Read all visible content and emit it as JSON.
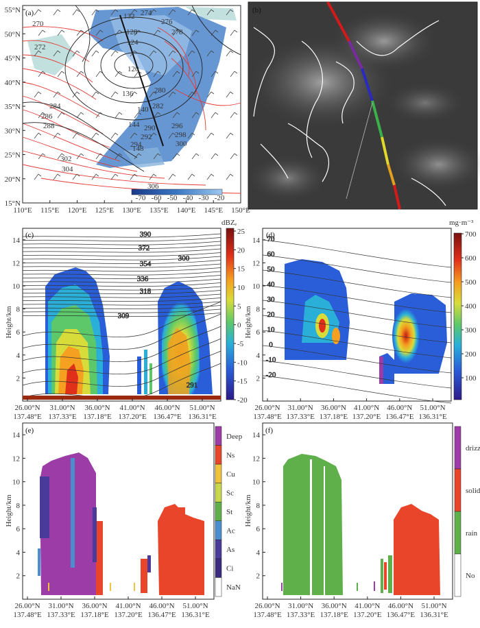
{
  "colors": {
    "map_ocean": "#ffffff",
    "map_land": "#ffffff",
    "cloud": "#3a78c4",
    "red_contour": "#e53935",
    "black_contour": "#222222",
    "sat_bg": "#3a3a3a"
  },
  "panel_a": {
    "letter": "(a)",
    "y_ticks": [
      "55°N",
      "50°N",
      "45°N",
      "40°N",
      "35°N",
      "30°N",
      "25°N",
      "20°N",
      "15°N"
    ],
    "x_ticks": [
      "110°E",
      "115°E",
      "120°E",
      "125°E",
      "130°E",
      "135°E",
      "140°E",
      "145°E",
      "150°E"
    ],
    "colorbar_ticks": [
      "-70",
      "-60",
      "-50",
      "-40",
      "-30",
      "-20"
    ],
    "red_labels": [
      "270",
      "272",
      "274",
      "276",
      "278",
      "280",
      "282",
      "284",
      "286",
      "288",
      "290",
      "292",
      "294",
      "296",
      "298",
      "300",
      "302",
      "304",
      "306"
    ],
    "black_labels": [
      "120",
      "124",
      "128",
      "132",
      "136",
      "140",
      "144",
      "148"
    ]
  },
  "panel_b": {
    "letter": "(b)"
  },
  "panel_c": {
    "letter": "(c)",
    "unit": "dBZₑ",
    "ylabel": "Height/km",
    "y_ticks": [
      "2",
      "4",
      "6",
      "8",
      "10",
      "12",
      "14"
    ],
    "colorbar_ticks": [
      "25",
      "20",
      "15",
      "10",
      "5",
      "0",
      "-5",
      "-10",
      "-15",
      "-20"
    ],
    "contour_labels": [
      "390",
      "372",
      "354",
      "336",
      "318",
      "309",
      "300",
      "291"
    ]
  },
  "panel_d": {
    "letter": "(d)",
    "unit": "mg·m⁻³",
    "ylabel": "Height/km",
    "y_ticks": [
      "2",
      "4",
      "6",
      "8",
      "10",
      "12",
      "14"
    ],
    "colorbar_ticks": [
      "700",
      "600",
      "500",
      "400",
      "300",
      "200",
      "100"
    ],
    "contour_labels": [
      "70",
      "60",
      "50",
      "40",
      "30",
      "20",
      "10",
      "0",
      "-10",
      "-20"
    ]
  },
  "panel_e": {
    "letter": "(e)",
    "ylabel": "Height/km",
    "y_ticks": [
      "2",
      "4",
      "6",
      "8",
      "10",
      "12",
      "14"
    ],
    "legend": [
      "Deep",
      "Ns",
      "Cu",
      "Sc",
      "St",
      "Ac",
      "As",
      "Ci",
      "NaN"
    ],
    "legend_colors": [
      "#9c3ca6",
      "#e8452a",
      "#f0c43a",
      "#c8d84a",
      "#5fb04a",
      "#4a8ed0",
      "#4a3a9a",
      "#3a2a80",
      "#ffffff"
    ]
  },
  "panel_f": {
    "letter": "(f)",
    "ylabel": "Height/km",
    "y_ticks": [
      "2",
      "4",
      "6",
      "8",
      "10",
      "12",
      "14"
    ],
    "legend": [
      "drizzle",
      "solid",
      "rain",
      "No"
    ],
    "legend_colors": [
      "#9c3ca6",
      "#e8452a",
      "#5fb04a",
      "#ffffff"
    ]
  },
  "x_axis": {
    "lat": [
      "26.00°N",
      "31.00°N",
      "36.00°N",
      "41.00°N",
      "46.00°N",
      "51.00°N"
    ],
    "lon": [
      "137.48°E",
      "137.33°E",
      "137.18°E",
      "137.20°E",
      "136.47°E",
      "136.31°E"
    ]
  },
  "chart_data": [
    {
      "type": "heatmap",
      "panel": "c",
      "ylabel": "Height/km",
      "ylim": [
        0,
        15
      ],
      "xlabel_lat": [
        "26.00°N",
        "31.00°N",
        "36.00°N",
        "41.00°N",
        "46.00°N",
        "51.00°N"
      ],
      "xlabel_lon": [
        "137.48°E",
        "137.33°E",
        "137.18°E",
        "137.20°E",
        "136.47°E",
        "136.31°E"
      ],
      "colorbar": {
        "label": "dBZₑ",
        "min": -20,
        "max": 25
      }
    },
    {
      "type": "heatmap",
      "panel": "d",
      "ylabel": "Height/km",
      "ylim": [
        0,
        15
      ],
      "colorbar": {
        "label": "mg·m⁻³",
        "min": 0,
        "max": 700
      }
    },
    {
      "type": "heatmap",
      "panel": "e",
      "ylabel": "Height/km",
      "ylim": [
        0,
        15
      ],
      "categories": [
        "Deep",
        "Ns",
        "Cu",
        "Sc",
        "St",
        "Ac",
        "As",
        "Ci",
        "NaN"
      ]
    },
    {
      "type": "heatmap",
      "panel": "f",
      "ylabel": "Height/km",
      "ylim": [
        0,
        15
      ],
      "categories": [
        "drizzle",
        "solid",
        "rain",
        "No"
      ]
    }
  ]
}
